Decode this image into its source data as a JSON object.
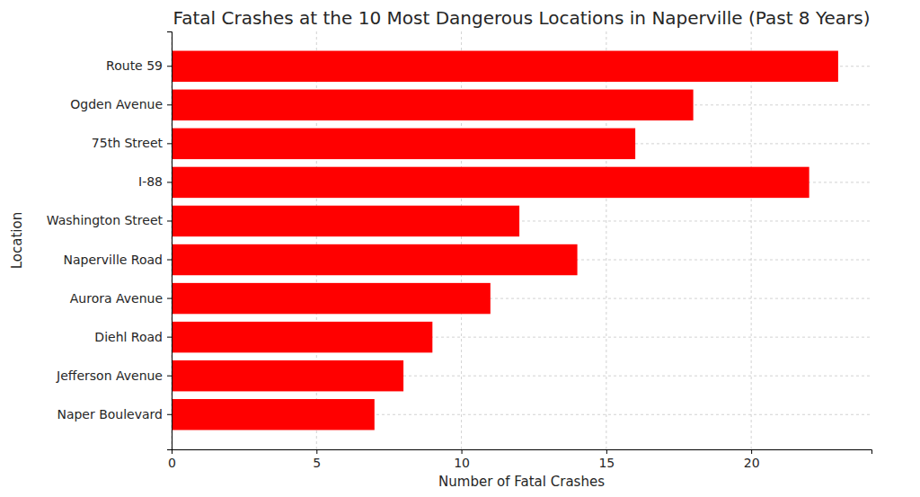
{
  "chart_data": {
    "type": "bar",
    "orientation": "horizontal",
    "title": "Fatal Crashes at the 10 Most Dangerous Locations in Naperville (Past 8 Years)",
    "x_label": "Number of Fatal Crashes",
    "y_label": "Location",
    "categories": [
      "Route 59",
      "Ogden Avenue",
      "75th Street",
      "I-88",
      "Washington Street",
      "Naperville Road",
      "Aurora Avenue",
      "Diehl Road",
      "Jefferson Avenue",
      "Naper Boulevard"
    ],
    "values": [
      23,
      18,
      16,
      22,
      12,
      14,
      11,
      9,
      8,
      7
    ],
    "color": "#ff0000",
    "xlim": [
      0,
      24.15
    ],
    "xticks": [
      0,
      5,
      10,
      15,
      20
    ],
    "grid": true
  }
}
